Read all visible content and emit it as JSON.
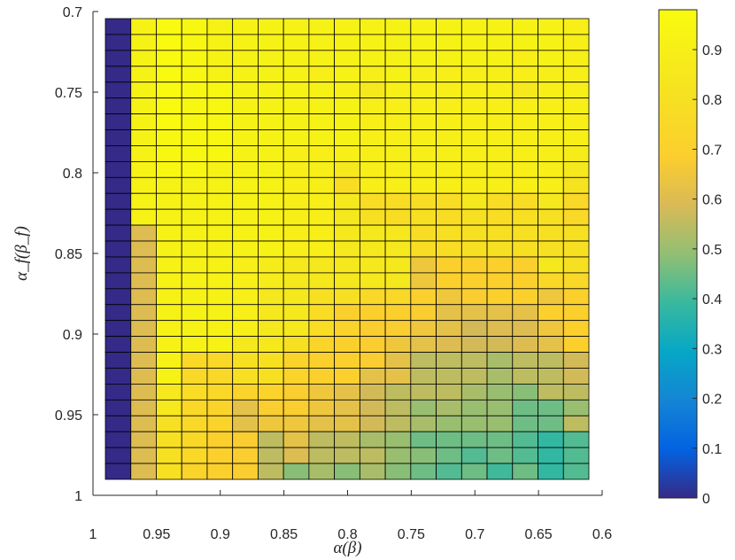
{
  "chart_data": {
    "type": "heatmap",
    "title": "",
    "xlabel": "α(β)",
    "ylabel": "α_f(β_f)",
    "xlim": [
      1,
      0.6
    ],
    "ylim": [
      0.7,
      1
    ],
    "x_reversed": true,
    "y_reversed": true,
    "x_ticks": [
      "1",
      "0.95",
      "0.9",
      "0.85",
      "0.8",
      "0.75",
      "0.7",
      "0.65",
      "0.6"
    ],
    "y_ticks": [
      "0.7",
      "0.75",
      "0.8",
      "0.85",
      "0.9",
      "0.95",
      "1"
    ],
    "x": [
      0.99,
      0.97,
      0.95,
      0.93,
      0.91,
      0.89,
      0.87,
      0.85,
      0.83,
      0.81,
      0.79,
      0.77,
      0.75,
      0.73,
      0.71,
      0.69,
      0.67,
      0.65,
      0.63
    ],
    "y": [
      0.71,
      0.72,
      0.73,
      0.74,
      0.75,
      0.76,
      0.77,
      0.78,
      0.79,
      0.8,
      0.81,
      0.82,
      0.83,
      0.84,
      0.85,
      0.86,
      0.87,
      0.88,
      0.89,
      0.9,
      0.91,
      0.92,
      0.93,
      0.94,
      0.95,
      0.96,
      0.97,
      0.98,
      0.99
    ],
    "z": [
      [
        0.0,
        0.92,
        0.97,
        0.95,
        0.92,
        0.92,
        0.92,
        0.92,
        0.92,
        0.92,
        0.92,
        0.92,
        0.92,
        0.92,
        0.92,
        0.92,
        0.92,
        0.92,
        0.9
      ],
      [
        0.0,
        0.92,
        0.97,
        0.95,
        0.92,
        0.92,
        0.92,
        0.92,
        0.92,
        0.92,
        0.92,
        0.92,
        0.92,
        0.92,
        0.92,
        0.92,
        0.92,
        0.92,
        0.9
      ],
      [
        0.0,
        0.92,
        0.97,
        0.95,
        0.92,
        0.92,
        0.92,
        0.92,
        0.92,
        0.92,
        0.92,
        0.92,
        0.92,
        0.92,
        0.92,
        0.92,
        0.9,
        0.92,
        0.9
      ],
      [
        0.0,
        0.92,
        0.97,
        0.95,
        0.92,
        0.92,
        0.92,
        0.92,
        0.9,
        0.92,
        0.9,
        0.92,
        0.9,
        0.9,
        0.9,
        0.9,
        0.9,
        0.9,
        0.9
      ],
      [
        0.0,
        0.92,
        0.97,
        0.95,
        0.95,
        0.92,
        0.92,
        0.92,
        0.92,
        0.9,
        0.85,
        0.9,
        0.9,
        0.9,
        0.9,
        0.9,
        0.85,
        0.9,
        0.9
      ],
      [
        0.0,
        0.92,
        0.97,
        0.95,
        0.95,
        0.92,
        0.92,
        0.92,
        0.92,
        0.92,
        0.9,
        0.9,
        0.9,
        0.9,
        0.9,
        0.9,
        0.9,
        0.9,
        0.9
      ],
      [
        0.0,
        0.92,
        0.97,
        0.95,
        0.95,
        0.92,
        0.92,
        0.92,
        0.92,
        0.92,
        0.9,
        0.9,
        0.9,
        0.9,
        0.9,
        0.9,
        0.9,
        0.9,
        0.9
      ],
      [
        0.0,
        0.92,
        0.95,
        0.95,
        0.95,
        0.92,
        0.92,
        0.92,
        0.92,
        0.92,
        0.9,
        0.9,
        0.9,
        0.9,
        0.9,
        0.9,
        0.9,
        0.9,
        0.9
      ],
      [
        0.0,
        0.92,
        0.95,
        0.95,
        0.95,
        0.92,
        0.92,
        0.9,
        0.9,
        0.9,
        0.9,
        0.9,
        0.9,
        0.9,
        0.9,
        0.9,
        0.9,
        0.9,
        0.88
      ],
      [
        0.0,
        0.92,
        0.95,
        0.95,
        0.92,
        0.92,
        0.92,
        0.9,
        0.9,
        0.85,
        0.9,
        0.9,
        0.9,
        0.9,
        0.9,
        0.9,
        0.9,
        0.9,
        0.85
      ],
      [
        0.0,
        0.92,
        0.92,
        0.92,
        0.92,
        0.92,
        0.92,
        0.9,
        0.9,
        0.78,
        0.9,
        0.9,
        0.9,
        0.9,
        0.9,
        0.9,
        0.9,
        0.9,
        0.82
      ],
      [
        0.0,
        0.92,
        0.92,
        0.92,
        0.92,
        0.92,
        0.92,
        0.9,
        0.9,
        0.85,
        0.78,
        0.78,
        0.78,
        0.78,
        0.85,
        0.78,
        0.78,
        0.85,
        0.75
      ],
      [
        0.0,
        0.92,
        0.92,
        0.92,
        0.92,
        0.92,
        0.92,
        0.9,
        0.9,
        0.85,
        0.8,
        0.78,
        0.8,
        0.78,
        0.8,
        0.78,
        0.8,
        0.8,
        0.75
      ],
      [
        0.0,
        0.6,
        0.92,
        0.92,
        0.92,
        0.92,
        0.92,
        0.9,
        0.9,
        0.85,
        0.85,
        0.85,
        0.78,
        0.8,
        0.8,
        0.8,
        0.8,
        0.8,
        0.8
      ],
      [
        0.0,
        0.6,
        0.92,
        0.92,
        0.92,
        0.92,
        0.92,
        0.9,
        0.9,
        0.85,
        0.85,
        0.85,
        0.78,
        0.78,
        0.8,
        0.8,
        0.8,
        0.8,
        0.8
      ],
      [
        0.0,
        0.6,
        0.92,
        0.92,
        0.92,
        0.9,
        0.88,
        0.85,
        0.85,
        0.85,
        0.85,
        0.85,
        0.65,
        0.7,
        0.7,
        0.7,
        0.7,
        0.85,
        0.8
      ],
      [
        0.0,
        0.6,
        0.92,
        0.92,
        0.92,
        0.9,
        0.88,
        0.85,
        0.85,
        0.85,
        0.85,
        0.85,
        0.65,
        0.7,
        0.7,
        0.7,
        0.7,
        0.75,
        0.75
      ],
      [
        0.0,
        0.6,
        0.92,
        0.92,
        0.92,
        0.9,
        0.85,
        0.85,
        0.8,
        0.8,
        0.75,
        0.75,
        0.7,
        0.65,
        0.68,
        0.7,
        0.7,
        0.65,
        0.7
      ],
      [
        0.0,
        0.6,
        0.92,
        0.92,
        0.92,
        0.9,
        0.85,
        0.85,
        0.78,
        0.7,
        0.7,
        0.7,
        0.68,
        0.62,
        0.62,
        0.62,
        0.62,
        0.7,
        0.7
      ],
      [
        0.0,
        0.6,
        0.92,
        0.92,
        0.92,
        0.9,
        0.85,
        0.85,
        0.78,
        0.72,
        0.68,
        0.68,
        0.65,
        0.62,
        0.58,
        0.6,
        0.6,
        0.65,
        0.7
      ],
      [
        0.0,
        0.6,
        0.92,
        0.92,
        0.92,
        0.85,
        0.85,
        0.8,
        0.72,
        0.7,
        0.68,
        0.65,
        0.62,
        0.6,
        0.58,
        0.58,
        0.6,
        0.62,
        0.7
      ],
      [
        0.0,
        0.6,
        0.92,
        0.75,
        0.75,
        0.8,
        0.8,
        0.72,
        0.7,
        0.7,
        0.68,
        0.62,
        0.55,
        0.55,
        0.55,
        0.52,
        0.55,
        0.55,
        0.58
      ],
      [
        0.0,
        0.6,
        0.92,
        0.75,
        0.75,
        0.8,
        0.8,
        0.72,
        0.7,
        0.7,
        0.62,
        0.62,
        0.55,
        0.55,
        0.55,
        0.52,
        0.55,
        0.55,
        0.58
      ],
      [
        0.0,
        0.6,
        0.85,
        0.78,
        0.75,
        0.72,
        0.72,
        0.68,
        0.65,
        0.62,
        0.58,
        0.55,
        0.55,
        0.55,
        0.52,
        0.5,
        0.48,
        0.55,
        0.55
      ],
      [
        0.0,
        0.6,
        0.85,
        0.75,
        0.72,
        0.62,
        0.68,
        0.68,
        0.65,
        0.62,
        0.58,
        0.55,
        0.5,
        0.52,
        0.5,
        0.5,
        0.45,
        0.45,
        0.5
      ],
      [
        0.0,
        0.6,
        0.8,
        0.75,
        0.72,
        0.62,
        0.65,
        0.65,
        0.62,
        0.62,
        0.58,
        0.55,
        0.52,
        0.5,
        0.5,
        0.5,
        0.45,
        0.45,
        0.55
      ],
      [
        0.0,
        0.6,
        0.8,
        0.75,
        0.7,
        0.68,
        0.55,
        0.62,
        0.55,
        0.55,
        0.52,
        0.5,
        0.45,
        0.45,
        0.45,
        0.45,
        0.42,
        0.38,
        0.42
      ],
      [
        0.0,
        0.6,
        0.8,
        0.75,
        0.7,
        0.68,
        0.55,
        0.6,
        0.55,
        0.55,
        0.55,
        0.5,
        0.48,
        0.45,
        0.42,
        0.45,
        0.42,
        0.38,
        0.42
      ],
      [
        0.0,
        0.6,
        0.8,
        0.72,
        0.7,
        0.68,
        0.55,
        0.48,
        0.52,
        0.48,
        0.52,
        0.48,
        0.45,
        0.42,
        0.45,
        0.4,
        0.45,
        0.38,
        0.42
      ]
    ],
    "colorbar": {
      "colormap": "parula",
      "limits": [
        0,
        0.98
      ],
      "ticks": [
        "0",
        "0.1",
        "0.2",
        "0.3",
        "0.4",
        "0.5",
        "0.6",
        "0.7",
        "0.8",
        "0.9"
      ]
    },
    "grid": false,
    "cell_edge_color": "#000000",
    "axis_color": "#262626"
  }
}
